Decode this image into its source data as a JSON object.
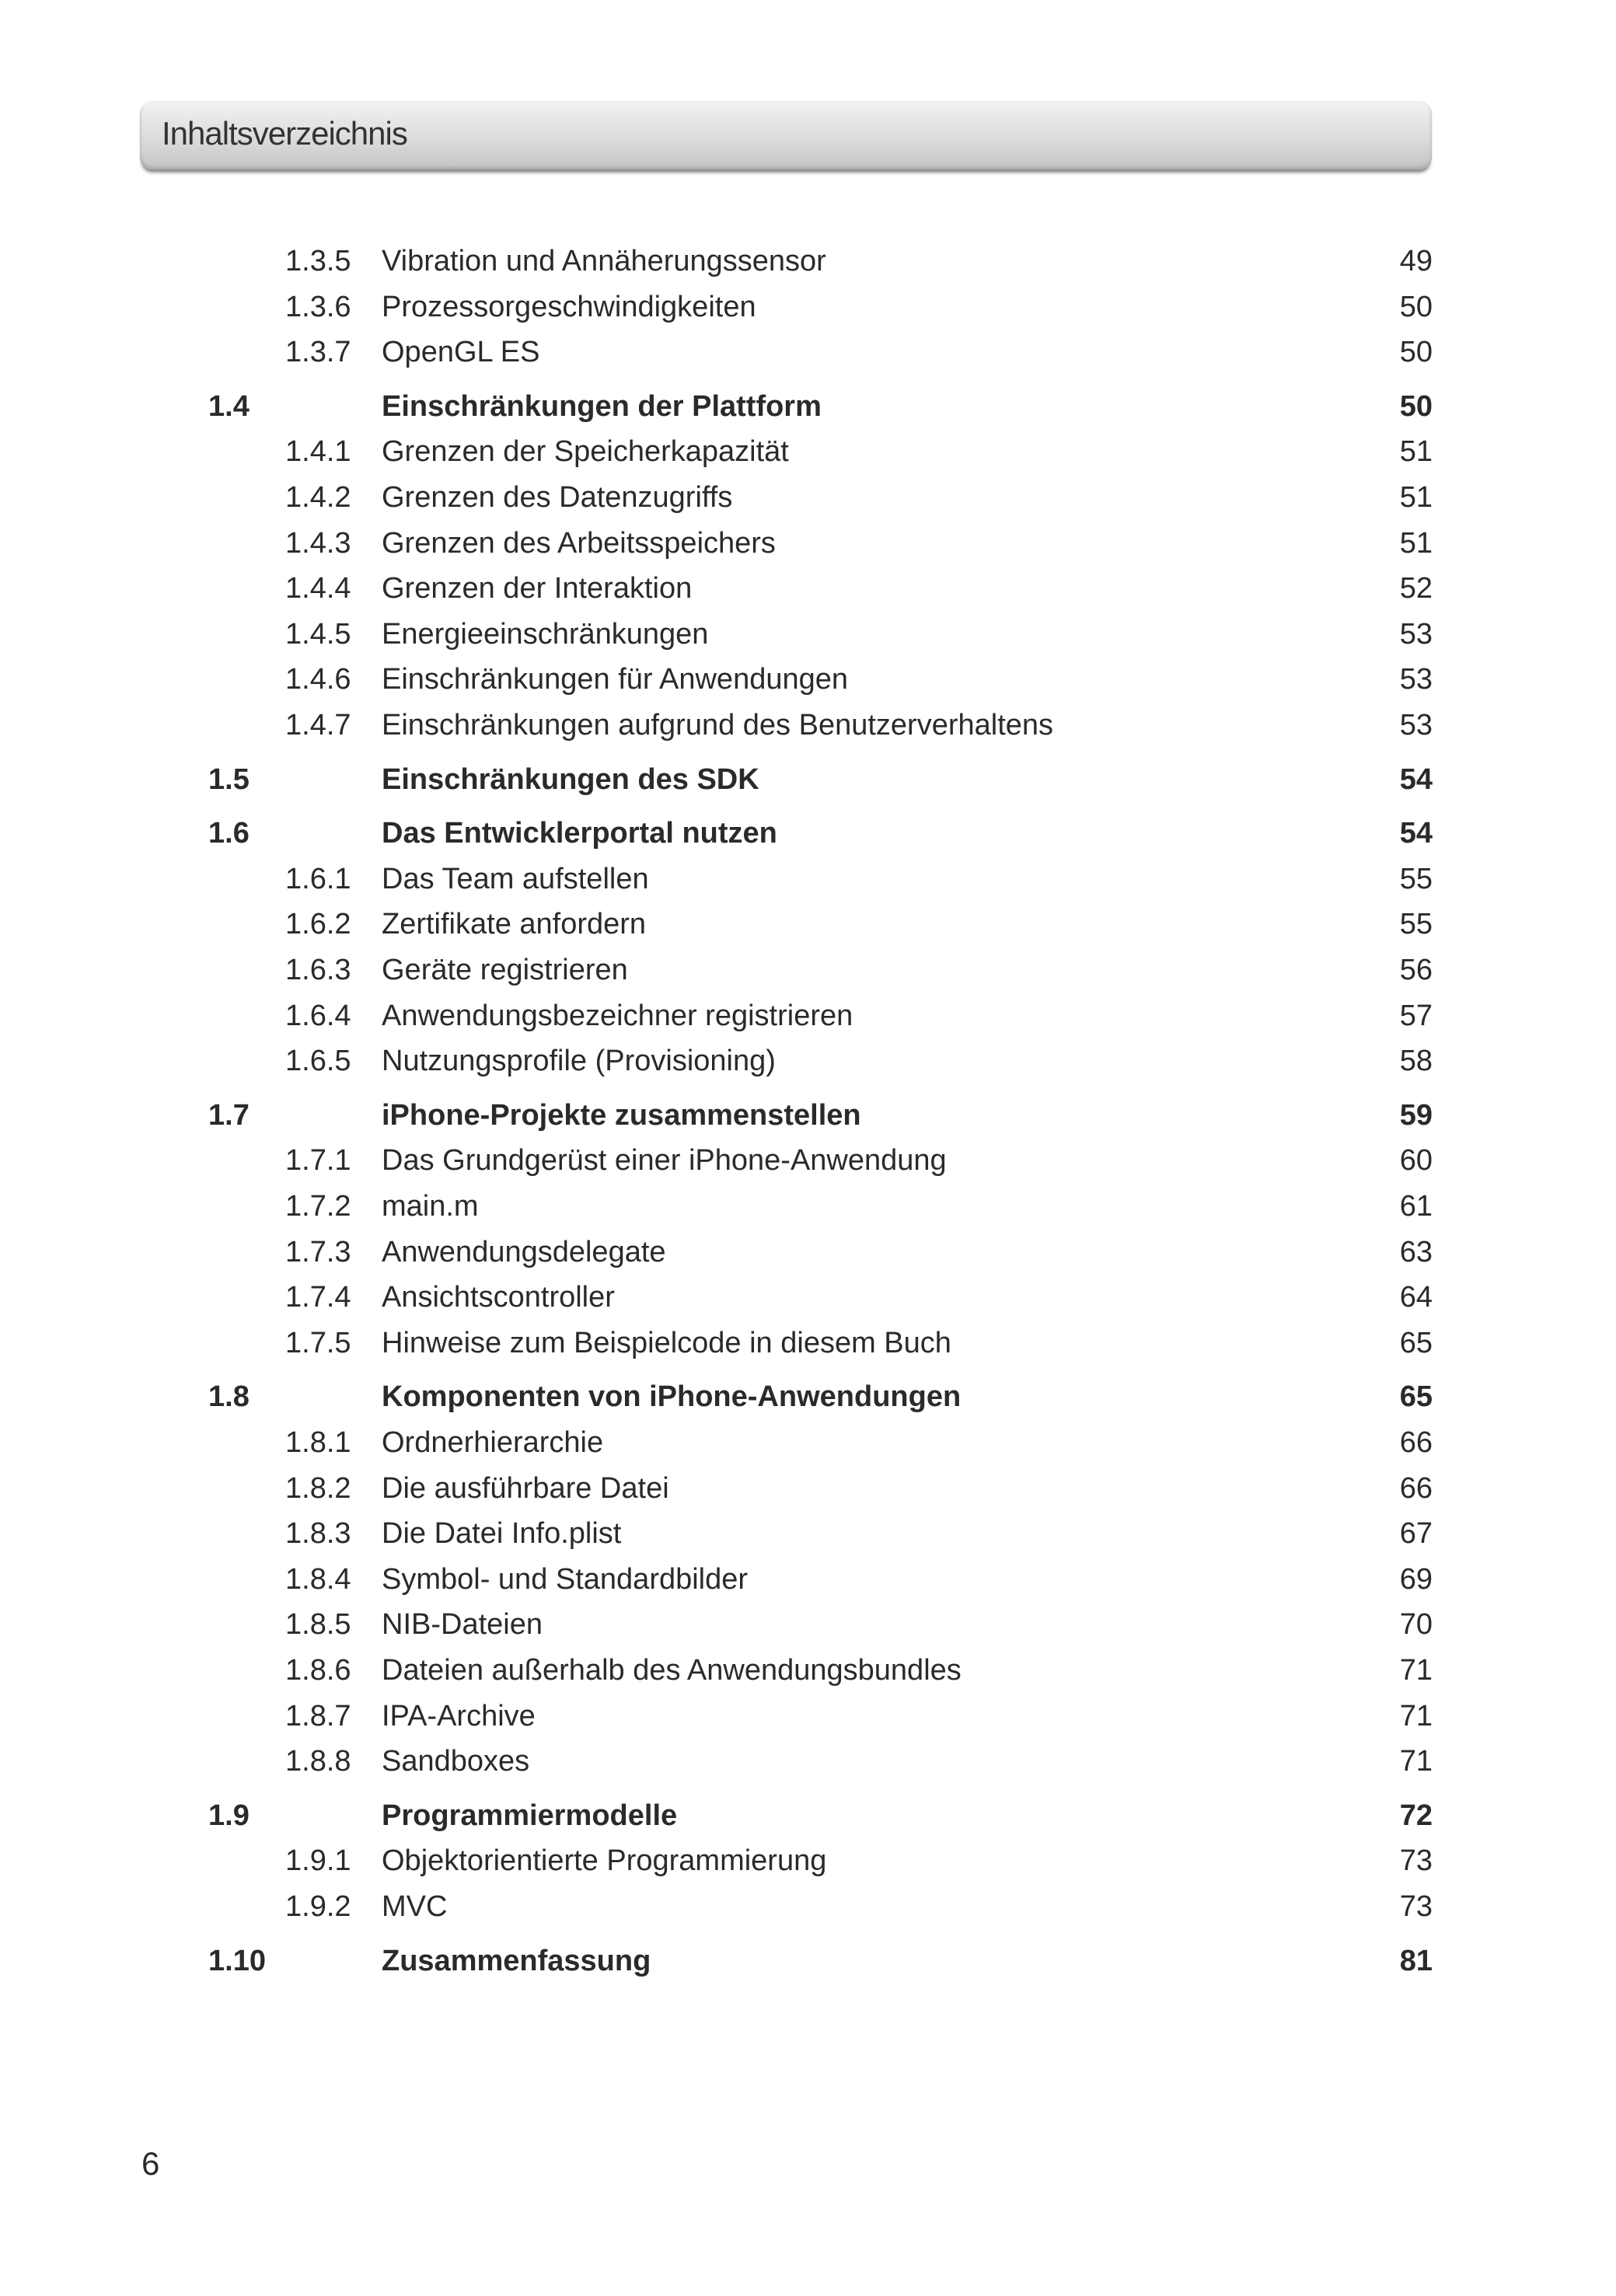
{
  "header": {
    "title": "Inhaltsverzeichnis"
  },
  "entries": [
    {
      "level": 2,
      "num": "1.3.5",
      "title": "Vibration und Annäherungssensor",
      "page": "49"
    },
    {
      "level": 2,
      "num": "1.3.6",
      "title": "Prozessorgeschwindigkeiten",
      "page": "50"
    },
    {
      "level": 2,
      "num": "1.3.7",
      "title": "OpenGL ES",
      "page": "50"
    },
    {
      "level": 1,
      "num": "1.4",
      "title": "Einschränkungen der Plattform",
      "page": "50"
    },
    {
      "level": 2,
      "num": "1.4.1",
      "title": "Grenzen der Speicherkapazität",
      "page": "51"
    },
    {
      "level": 2,
      "num": "1.4.2",
      "title": "Grenzen des Datenzugriffs",
      "page": "51"
    },
    {
      "level": 2,
      "num": "1.4.3",
      "title": "Grenzen des Arbeitsspeichers",
      "page": "51"
    },
    {
      "level": 2,
      "num": "1.4.4",
      "title": "Grenzen der Interaktion",
      "page": "52"
    },
    {
      "level": 2,
      "num": "1.4.5",
      "title": "Energieeinschränkungen",
      "page": "53"
    },
    {
      "level": 2,
      "num": "1.4.6",
      "title": "Einschränkungen für Anwendungen",
      "page": "53"
    },
    {
      "level": 2,
      "num": "1.4.7",
      "title": "Einschränkungen aufgrund des Benutzerverhaltens",
      "page": "53"
    },
    {
      "level": 1,
      "num": "1.5",
      "title": "Einschränkungen des SDK",
      "page": "54"
    },
    {
      "level": 1,
      "num": "1.6",
      "title": "Das Entwicklerportal nutzen",
      "page": "54"
    },
    {
      "level": 2,
      "num": "1.6.1",
      "title": "Das Team aufstellen",
      "page": "55"
    },
    {
      "level": 2,
      "num": "1.6.2",
      "title": "Zertifikate anfordern",
      "page": "55"
    },
    {
      "level": 2,
      "num": "1.6.3",
      "title": "Geräte registrieren",
      "page": "56"
    },
    {
      "level": 2,
      "num": "1.6.4",
      "title": "Anwendungsbezeichner registrieren",
      "page": "57"
    },
    {
      "level": 2,
      "num": "1.6.5",
      "title": "Nutzungsprofile (Provisioning)",
      "page": "58"
    },
    {
      "level": 1,
      "num": "1.7",
      "title": "iPhone-Projekte zusammenstellen",
      "page": "59"
    },
    {
      "level": 2,
      "num": "1.7.1",
      "title": "Das Grundgerüst einer iPhone-Anwendung",
      "page": "60"
    },
    {
      "level": 2,
      "num": "1.7.2",
      "title": "main.m",
      "page": "61"
    },
    {
      "level": 2,
      "num": "1.7.3",
      "title": "Anwendungsdelegate",
      "page": "63"
    },
    {
      "level": 2,
      "num": "1.7.4",
      "title": "Ansichtscontroller",
      "page": "64"
    },
    {
      "level": 2,
      "num": "1.7.5",
      "title": "Hinweise zum Beispielcode in diesem Buch",
      "page": "65"
    },
    {
      "level": 1,
      "num": "1.8",
      "title": "Komponenten von iPhone-Anwendungen",
      "page": "65"
    },
    {
      "level": 2,
      "num": "1.8.1",
      "title": "Ordnerhierarchie",
      "page": "66"
    },
    {
      "level": 2,
      "num": "1.8.2",
      "title": "Die ausführbare Datei",
      "page": "66"
    },
    {
      "level": 2,
      "num": "1.8.3",
      "title": "Die Datei Info.plist",
      "page": "67"
    },
    {
      "level": 2,
      "num": "1.8.4",
      "title": "Symbol- und Standardbilder",
      "page": "69"
    },
    {
      "level": 2,
      "num": "1.8.5",
      "title": "NIB-Dateien",
      "page": "70"
    },
    {
      "level": 2,
      "num": "1.8.6",
      "title": "Dateien außerhalb des Anwendungsbundles",
      "page": "71"
    },
    {
      "level": 2,
      "num": "1.8.7",
      "title": "IPA-Archive",
      "page": "71"
    },
    {
      "level": 2,
      "num": "1.8.8",
      "title": "Sandboxes",
      "page": "71"
    },
    {
      "level": 1,
      "num": "1.9",
      "title": "Programmiermodelle",
      "page": "72"
    },
    {
      "level": 2,
      "num": "1.9.1",
      "title": "Objektorientierte Programmierung",
      "page": "73"
    },
    {
      "level": 2,
      "num": "1.9.2",
      "title": "MVC",
      "page": "73"
    },
    {
      "level": 1,
      "num": "1.10",
      "title": "Zusammenfassung",
      "page": "81"
    }
  ],
  "footer": {
    "page_number": "6"
  }
}
